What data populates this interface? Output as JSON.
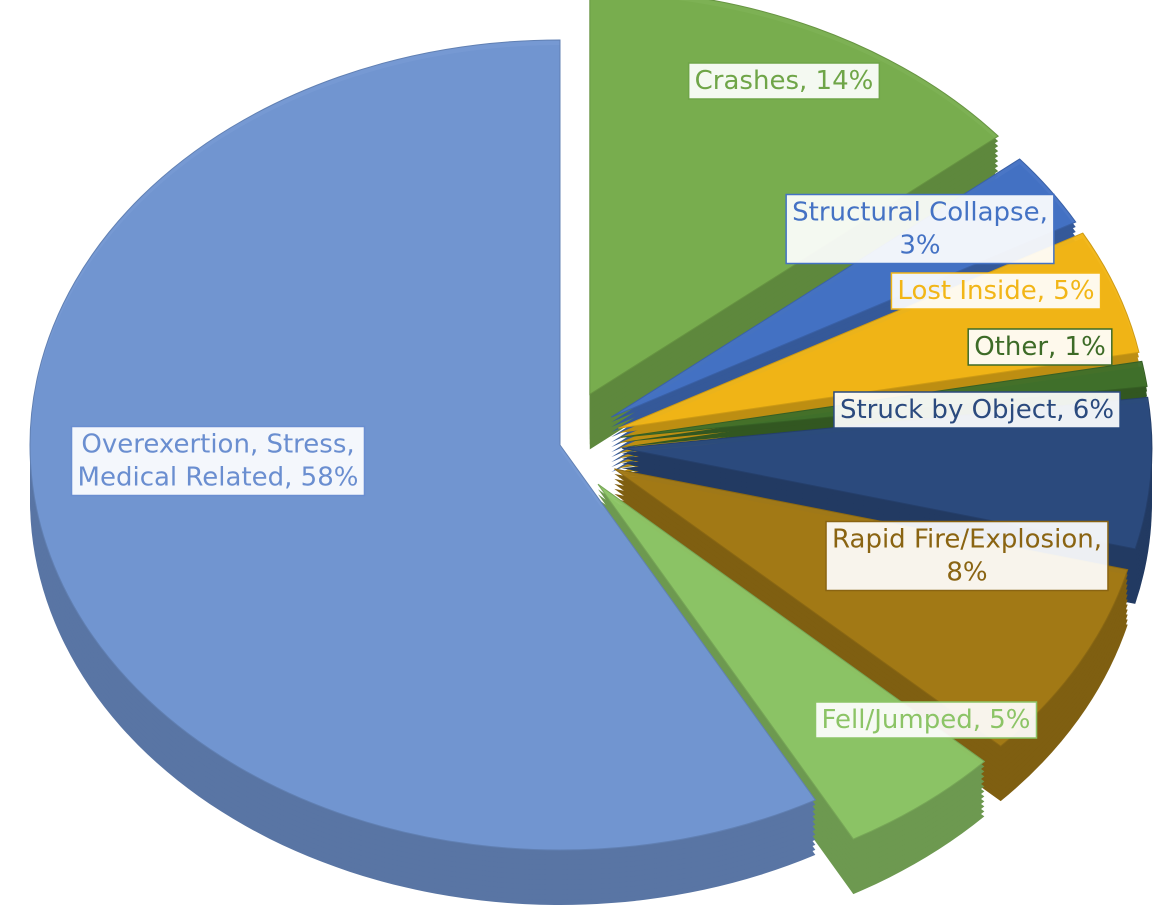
{
  "chart_data": {
    "type": "pie",
    "values": [
      14,
      3,
      5,
      1,
      6,
      8,
      5,
      58
    ],
    "value_labels": [
      "Crashes, 14%",
      "Structural Collapse,\n3%",
      "Lost Inside, 5%",
      "Other, 1%",
      "Struck by Object, 6%",
      "Rapid Fire/Explosion,\n8%",
      "Fell/Jumped, 5%",
      "Overexertion, Stress,\nMedical Related, 58%"
    ],
    "colors": [
      "#79ae4e",
      "#4472c4",
      "#f2b617",
      "#40702a",
      "#2b4a7e",
      "#a37a16",
      "#8cc466",
      "#7296d2"
    ],
    "label_colors": [
      "#6fa548",
      "#4472c4",
      "#f2b617",
      "#3d6b27",
      "#2b4a7e",
      "#8a6412",
      "#8cc466",
      "#6a8ed0"
    ]
  }
}
